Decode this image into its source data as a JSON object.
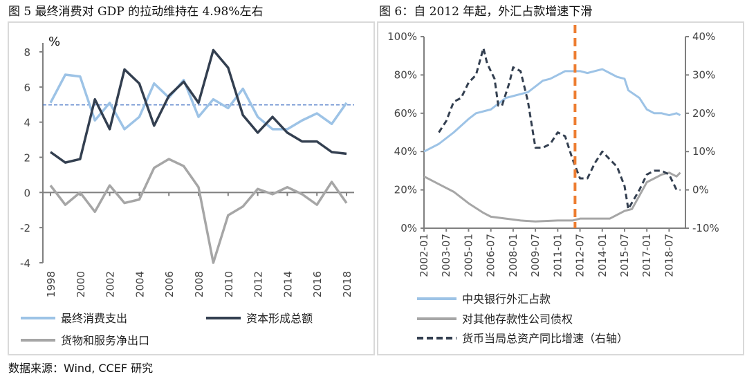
{
  "source": "数据来源：Wind, CCEF 研究",
  "colors": {
    "consumption": "#9dc3e6",
    "capital": "#333f50",
    "netexport": "#a6a6a6",
    "reference": "#4472c4",
    "fx": "#9dc3e6",
    "claims": "#a6a6a6",
    "growth": "#333f50",
    "marker": "#ed7d31",
    "axis": "#7f7f7f"
  },
  "chart_data": [
    {
      "type": "line",
      "title": "图 5 最终消费对 GDP 的拉动维持在 4.98%左右",
      "ylabel": "%",
      "ylim": [
        -4,
        8
      ],
      "yticks": [
        "8",
        "6",
        "4",
        "2",
        "0",
        "-2",
        "-4"
      ],
      "x": [
        1998,
        1999,
        2000,
        2001,
        2002,
        2003,
        2004,
        2005,
        2006,
        2007,
        2008,
        2009,
        2010,
        2011,
        2012,
        2013,
        2014,
        2015,
        2016,
        2017,
        2018
      ],
      "xticks": [
        "1998",
        "2000",
        "2002",
        "2004",
        "2006",
        "2008",
        "2010",
        "2012",
        "2014",
        "2016",
        "2018"
      ],
      "reference_line": 4.98,
      "grid": false,
      "legend": "bottom",
      "series": [
        {
          "name": "最终消费支出",
          "values": [
            5.1,
            6.7,
            6.6,
            4.1,
            5.1,
            3.6,
            4.3,
            6.2,
            5.4,
            6.4,
            4.3,
            5.3,
            4.8,
            5.9,
            4.3,
            3.6,
            3.6,
            4.1,
            4.5,
            3.9,
            5.1
          ]
        },
        {
          "name": "资本形成总额",
          "values": [
            2.3,
            1.7,
            1.9,
            5.3,
            3.6,
            7.0,
            6.2,
            3.8,
            5.5,
            6.3,
            5.1,
            8.1,
            7.1,
            4.4,
            3.4,
            4.3,
            3.4,
            2.9,
            2.9,
            2.3,
            2.2
          ]
        },
        {
          "name": "货物和服务净出口",
          "values": [
            0.4,
            -0.7,
            0.0,
            -1.1,
            0.4,
            -0.6,
            -0.4,
            1.4,
            1.9,
            1.5,
            0.3,
            -4.0,
            -1.3,
            -0.8,
            0.2,
            -0.1,
            0.3,
            -0.1,
            -0.7,
            0.6,
            -0.6
          ]
        }
      ]
    },
    {
      "type": "line",
      "title": "图 6：自 2012 年起，外汇占款增速下滑",
      "ylim": [
        0,
        100
      ],
      "y2lim": [
        -10,
        40
      ],
      "yticks": [
        "100%",
        "80%",
        "60%",
        "40%",
        "20%",
        "0%"
      ],
      "y2ticks": [
        "40%",
        "30%",
        "20%",
        "10%",
        "0%",
        "-10%"
      ],
      "xticks": [
        "2002-01",
        "2003-07",
        "2005-01",
        "2006-07",
        "2008-01",
        "2009-07",
        "2011-01",
        "2012-07",
        "2014-01",
        "2015-07",
        "2017-01",
        "2018-07"
      ],
      "marker_line": "2012-03",
      "grid": false,
      "legend": "bottom",
      "series": [
        {
          "name": "中央银行外汇占款",
          "axis": "left",
          "points": [
            [
              "2002-01",
              40
            ],
            [
              "2003-01",
              44
            ],
            [
              "2004-01",
              50
            ],
            [
              "2005-01",
              57
            ],
            [
              "2005-07",
              60
            ],
            [
              "2006-07",
              62
            ],
            [
              "2007-07",
              68
            ],
            [
              "2008-01",
              69
            ],
            [
              "2008-07",
              70
            ],
            [
              "2009-01",
              71
            ],
            [
              "2009-07",
              74
            ],
            [
              "2010-01",
              77
            ],
            [
              "2010-07",
              78
            ],
            [
              "2011-01",
              80
            ],
            [
              "2011-07",
              82
            ],
            [
              "2012-01",
              82
            ],
            [
              "2012-07",
              82
            ],
            [
              "2013-01",
              81
            ],
            [
              "2013-07",
              82
            ],
            [
              "2014-01",
              83
            ],
            [
              "2014-07",
              81
            ],
            [
              "2015-01",
              79
            ],
            [
              "2015-07",
              78
            ],
            [
              "2015-10",
              72
            ],
            [
              "2016-07",
              68
            ],
            [
              "2017-01",
              62
            ],
            [
              "2017-07",
              60
            ],
            [
              "2018-01",
              60
            ],
            [
              "2018-07",
              59
            ],
            [
              "2019-01",
              60
            ],
            [
              "2019-04",
              59
            ]
          ]
        },
        {
          "name": "对其他存款性公司债权",
          "axis": "left",
          "points": [
            [
              "2002-01",
              27
            ],
            [
              "2003-01",
              23
            ],
            [
              "2004-01",
              19
            ],
            [
              "2005-01",
              13
            ],
            [
              "2006-01",
              8
            ],
            [
              "2006-07",
              6
            ],
            [
              "2007-07",
              5
            ],
            [
              "2008-07",
              4
            ],
            [
              "2009-07",
              3.5
            ],
            [
              "2011-01",
              4
            ],
            [
              "2012-01",
              4
            ],
            [
              "2012-07",
              5
            ],
            [
              "2013-07",
              5
            ],
            [
              "2014-07",
              5
            ],
            [
              "2015-01",
              7
            ],
            [
              "2015-07",
              9
            ],
            [
              "2016-01",
              10
            ],
            [
              "2016-07",
              17
            ],
            [
              "2017-01",
              24
            ],
            [
              "2017-07",
              26
            ],
            [
              "2018-01",
              28
            ],
            [
              "2018-07",
              29
            ],
            [
              "2019-01",
              27
            ],
            [
              "2019-04",
              29
            ]
          ]
        },
        {
          "name": "货币当局总资产同比增速（右轴）",
          "axis": "right",
          "points": [
            [
              "2003-01",
              15
            ],
            [
              "2003-07",
              18
            ],
            [
              "2004-01",
              23
            ],
            [
              "2004-07",
              24
            ],
            [
              "2005-01",
              28
            ],
            [
              "2005-07",
              30
            ],
            [
              "2006-01",
              37
            ],
            [
              "2006-04",
              33
            ],
            [
              "2006-10",
              29
            ],
            [
              "2007-01",
              22
            ],
            [
              "2007-04",
              22
            ],
            [
              "2007-10",
              28
            ],
            [
              "2008-01",
              32
            ],
            [
              "2008-07",
              31
            ],
            [
              "2009-01",
              23
            ],
            [
              "2009-07",
              11
            ],
            [
              "2010-01",
              11
            ],
            [
              "2010-07",
              12
            ],
            [
              "2011-01",
              15
            ],
            [
              "2011-07",
              14
            ],
            [
              "2012-01",
              8
            ],
            [
              "2012-07",
              3
            ],
            [
              "2013-01",
              3
            ],
            [
              "2013-07",
              7
            ],
            [
              "2014-01",
              10
            ],
            [
              "2014-07",
              8
            ],
            [
              "2015-01",
              6
            ],
            [
              "2015-07",
              1
            ],
            [
              "2015-10",
              -5
            ],
            [
              "2016-07",
              0
            ],
            [
              "2017-01",
              4
            ],
            [
              "2017-07",
              5
            ],
            [
              "2018-01",
              5
            ],
            [
              "2018-07",
              4
            ],
            [
              "2019-01",
              0
            ],
            [
              "2019-04",
              0
            ]
          ]
        }
      ]
    }
  ]
}
